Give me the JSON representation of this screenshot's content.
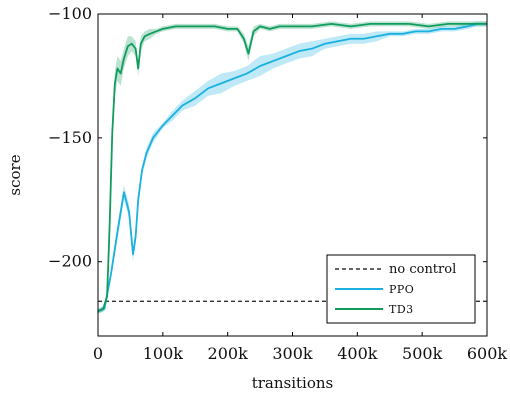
{
  "chart_data": {
    "type": "line",
    "xlabel": "transitions",
    "ylabel": "score",
    "xlim": [
      0,
      600000
    ],
    "ylim": [
      -230,
      -100
    ],
    "xticks": [
      0,
      100000,
      200000,
      300000,
      400000,
      500000,
      600000
    ],
    "xtick_labels": [
      "0",
      "100k",
      "200k",
      "300k",
      "400k",
      "500k",
      "600k"
    ],
    "yticks": [
      -100,
      -150,
      -200
    ],
    "ytick_labels": [
      "−100",
      "−150",
      "−200"
    ],
    "legend_position": "bottom-right",
    "grid": false,
    "series": [
      {
        "name": "no control",
        "style": "dashed",
        "color": "#333333",
        "x": [
          0,
          600000
        ],
        "y": [
          -216,
          -216
        ]
      },
      {
        "name": "PPO",
        "style": "solid",
        "color": "#1ab0e0",
        "band": true,
        "x": [
          0,
          10000,
          20000,
          30000,
          40000,
          48000,
          54000,
          58000,
          62000,
          68000,
          75000,
          85000,
          100000,
          115000,
          130000,
          150000,
          170000,
          190000,
          210000,
          230000,
          250000,
          270000,
          290000,
          310000,
          330000,
          350000,
          370000,
          390000,
          410000,
          430000,
          450000,
          470000,
          490000,
          510000,
          530000,
          550000,
          570000,
          585000,
          600000
        ],
        "y": [
          -220,
          -219,
          -205,
          -188,
          -172,
          -180,
          -197,
          -190,
          -175,
          -163,
          -156,
          -150,
          -145,
          -141,
          -137,
          -134,
          -130,
          -128,
          -126,
          -124,
          -121,
          -119,
          -117,
          -115,
          -114,
          -112,
          -111,
          -110,
          -110,
          -109,
          -108,
          -108,
          -107,
          -107,
          -106,
          -106,
          -105,
          -104,
          -104
        ],
        "band_halfwidth": [
          1,
          1,
          2,
          3,
          3,
          3,
          3,
          3,
          3,
          2,
          2,
          2,
          1,
          2,
          2,
          3,
          3,
          4,
          3,
          3,
          4,
          3,
          3,
          3,
          3,
          2,
          2,
          2,
          2,
          2,
          1,
          1,
          1,
          1,
          1,
          1,
          1,
          1,
          1
        ]
      },
      {
        "name": "TD3",
        "style": "solid",
        "color": "#109c5c",
        "band": true,
        "x": [
          0,
          8000,
          14000,
          18000,
          22000,
          26000,
          30000,
          35000,
          40000,
          46000,
          52000,
          58000,
          62000,
          66000,
          72000,
          80000,
          90000,
          100000,
          120000,
          140000,
          160000,
          180000,
          200000,
          215000,
          225000,
          232000,
          240000,
          250000,
          265000,
          280000,
          300000,
          330000,
          360000,
          390000,
          420000,
          450000,
          480000,
          510000,
          540000,
          570000,
          600000
        ],
        "y": [
          -220,
          -219,
          -214,
          -185,
          -148,
          -128,
          -122,
          -124,
          -118,
          -113,
          -112,
          -114,
          -122,
          -112,
          -109,
          -108,
          -107,
          -106,
          -105,
          -105,
          -105,
          -105,
          -106,
          -106,
          -110,
          -116,
          -107,
          -105,
          -106,
          -105,
          -105,
          -105,
          -104,
          -105,
          -104,
          -104,
          -104,
          -105,
          -104,
          -104,
          -104
        ],
        "band_halfwidth": [
          1,
          1,
          2,
          4,
          5,
          5,
          5,
          5,
          4,
          4,
          3,
          3,
          3,
          3,
          2,
          2,
          1,
          1,
          1,
          1,
          1,
          1,
          1,
          1,
          2,
          3,
          2,
          1,
          1,
          1,
          1,
          1,
          1,
          1,
          1,
          1,
          1,
          1,
          1,
          1,
          1
        ]
      }
    ],
    "legend": [
      {
        "label": "no control",
        "style": "dashed",
        "color": "#333333"
      },
      {
        "label": "PPO",
        "style": "solid",
        "color": "#1ab0e0"
      },
      {
        "label": "TD3",
        "style": "solid",
        "color": "#109c5c"
      }
    ]
  }
}
